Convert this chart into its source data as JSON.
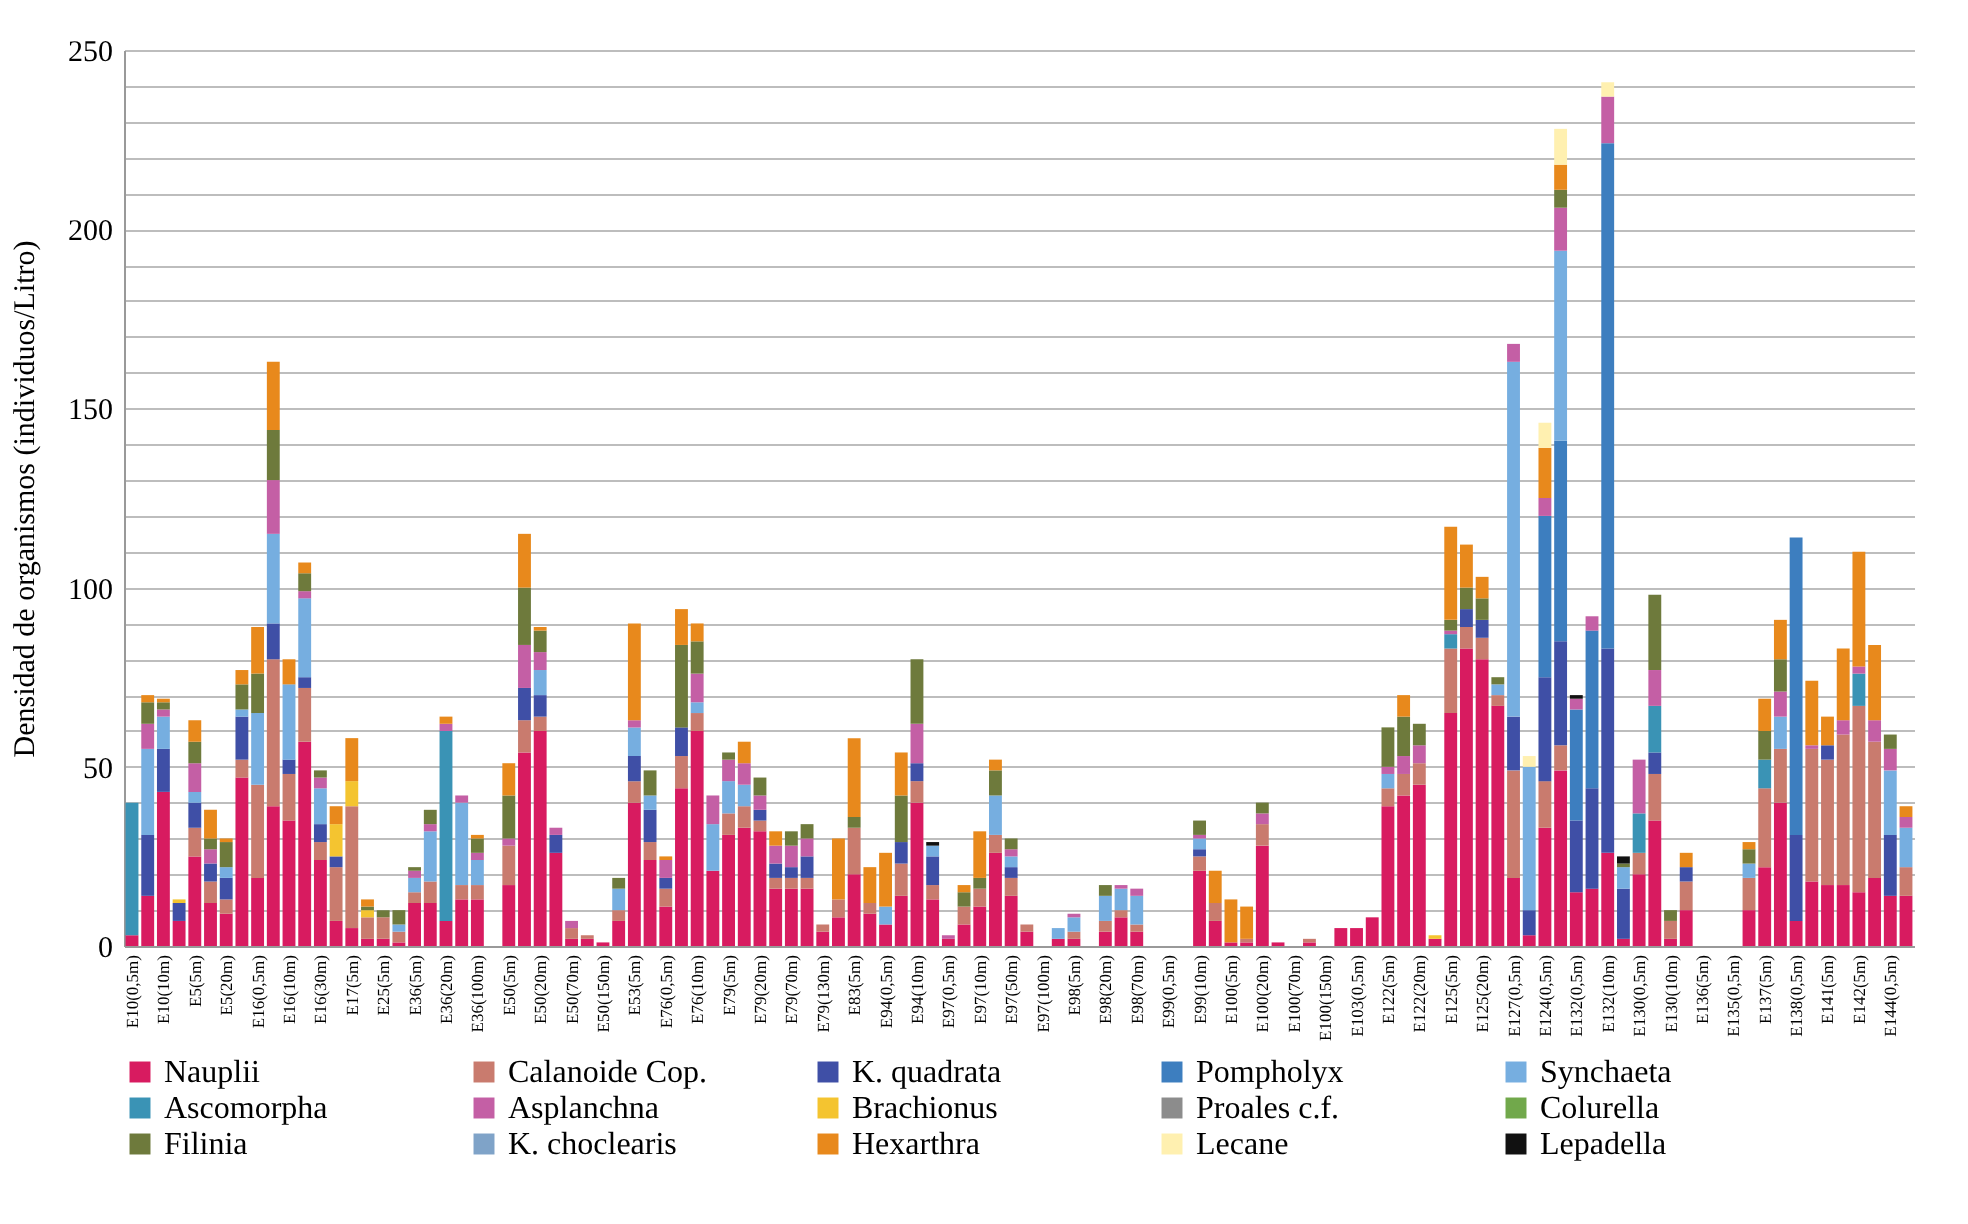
{
  "chart_data": {
    "type": "bar",
    "stacked": true,
    "ylabel": "Densidad de organismos (individuos/Litro)",
    "legend": "bottom",
    "grid": "y",
    "ylim": [
      0,
      250
    ],
    "yticks": [
      0,
      {
        "value": 10,
        "label": null
      },
      {
        "value": 20,
        "label": null
      },
      {
        "value": 30,
        "label": null
      },
      {
        "value": 40,
        "label": null
      },
      50,
      {
        "value": 60,
        "label": null
      },
      {
        "value": 70,
        "label": null
      },
      {
        "value": 80,
        "label": null
      },
      {
        "value": 90,
        "label": null
      },
      100,
      {
        "value": 110,
        "label": null
      },
      {
        "value": 120,
        "label": null
      },
      {
        "value": 130,
        "label": null
      },
      {
        "value": 140,
        "label": null
      },
      150,
      {
        "value": 160,
        "label": null
      },
      {
        "value": 170,
        "label": null
      },
      {
        "value": 180,
        "label": null
      },
      {
        "value": 190,
        "label": null
      },
      200,
      {
        "value": 210,
        "label": null
      },
      {
        "value": 220,
        "label": null
      },
      {
        "value": 230,
        "label": null
      },
      {
        "value": 240,
        "label": null
      },
      250
    ],
    "categories": [
      "E10(0,5m)",
      null,
      "E10(10m)",
      null,
      "E5(5m)",
      null,
      "E5(20m)",
      null,
      "E16(0,5m)",
      null,
      "E16(10m)",
      null,
      "E16(30m)",
      null,
      "E17(5m)",
      null,
      "E25(5m)",
      null,
      "E36(5m)",
      null,
      "E36(20m)",
      null,
      "E36(100m)",
      null,
      "E50(5m)",
      null,
      "E50(20m)",
      null,
      "E50(70m)",
      null,
      "E50(150m)",
      null,
      "E53(5m)",
      null,
      "E76(0,5m)",
      null,
      "E76(10m)",
      null,
      "E79(5m)",
      null,
      "E79(20m)",
      null,
      "E79(70m)",
      null,
      "E79(130m)",
      null,
      "E83(5m)",
      null,
      "E94(0,5m)",
      null,
      "E94(10m)",
      null,
      "E97(0,5m)",
      null,
      "E97(10m)",
      null,
      "E97(50m)",
      null,
      "E97(100m)",
      null,
      "E98(5m)",
      null,
      "E98(20m)",
      null,
      "E98(70m)",
      null,
      "E99(0,5m)",
      null,
      "E99(10m)",
      null,
      "E100(5m)",
      null,
      "E100(20m)",
      null,
      "E100(70m)",
      null,
      "E100(150m)",
      null,
      "E103(0,5m)",
      null,
      "E122(5m)",
      null,
      "E122(20m)",
      null,
      "E125(5m)",
      null,
      "E125(20m)",
      null,
      "E127(0,5m)",
      null,
      "E124(0,5m)",
      null,
      "E132(0,5m)",
      null,
      "E132(10m)",
      null,
      "E130(0,5m)",
      null,
      "E130(10m)",
      null,
      "E136(5m)",
      null,
      "E135(0,5m)",
      null,
      "E137(5m)",
      null,
      "E138(0,5m)",
      null,
      "E141(5m)",
      null,
      "E142(5m)",
      null,
      "E144(0,5m)",
      null
    ],
    "series": [
      {
        "name": "Nauplii",
        "color": "#d81b60",
        "values": [
          3,
          14,
          43,
          7,
          25,
          12,
          9,
          47,
          19,
          39,
          35,
          57,
          24,
          7,
          5,
          2,
          2,
          1,
          12,
          12,
          7,
          13,
          13,
          null,
          17,
          54,
          60,
          26,
          2,
          2,
          1,
          7,
          40,
          24,
          11,
          44,
          60,
          21,
          31,
          33,
          32,
          16,
          16,
          16,
          4,
          8,
          20,
          9,
          6,
          14,
          40,
          13,
          2,
          6,
          11,
          26,
          14,
          4,
          null,
          2,
          2,
          null,
          4,
          8,
          4,
          null,
          null,
          null,
          21,
          7,
          1,
          1,
          28,
          1,
          null,
          1,
          null,
          5,
          5,
          8,
          39,
          42,
          45,
          2,
          65,
          83,
          80,
          67,
          19,
          3,
          33,
          49,
          15,
          16,
          26,
          2,
          20,
          35,
          2,
          10,
          null,
          null,
          null,
          10,
          22,
          40,
          7,
          18,
          17,
          17,
          15,
          19,
          14,
          14
        ]
      },
      {
        "name": "Calanoide Cop.",
        "color": "#c97b6e",
        "values": [
          null,
          null,
          null,
          null,
          8,
          6,
          4,
          5,
          26,
          41,
          13,
          15,
          5,
          15,
          34,
          6,
          6,
          3,
          3,
          6,
          null,
          4,
          4,
          null,
          11,
          9,
          4,
          null,
          3,
          1,
          null,
          3,
          6,
          5,
          5,
          9,
          5,
          null,
          6,
          6,
          3,
          3,
          3,
          3,
          2,
          5,
          13,
          3,
          null,
          9,
          6,
          4,
          null,
          5,
          5,
          5,
          5,
          2,
          null,
          null,
          2,
          null,
          3,
          2,
          2,
          null,
          null,
          null,
          4,
          5,
          null,
          1,
          6,
          null,
          null,
          1,
          null,
          null,
          null,
          null,
          5,
          6,
          6,
          null,
          18,
          6,
          6,
          3,
          30,
          null,
          13,
          7,
          null,
          null,
          null,
          null,
          6,
          13,
          5,
          8,
          null,
          null,
          null,
          9,
          22,
          15,
          null,
          37,
          35,
          42,
          52,
          38,
          null,
          8
        ]
      },
      {
        "name": "K. quadrata",
        "color": "#3f4fa6",
        "values": [
          null,
          17,
          12,
          5,
          7,
          5,
          6,
          12,
          null,
          10,
          4,
          3,
          5,
          3,
          null,
          null,
          null,
          null,
          null,
          null,
          null,
          null,
          null,
          null,
          null,
          9,
          6,
          5,
          null,
          null,
          null,
          null,
          7,
          9,
          3,
          8,
          null,
          null,
          null,
          null,
          3,
          4,
          3,
          6,
          null,
          null,
          null,
          null,
          null,
          6,
          5,
          8,
          null,
          null,
          null,
          null,
          3,
          null,
          null,
          null,
          null,
          null,
          null,
          null,
          null,
          null,
          null,
          null,
          2,
          null,
          null,
          null,
          null,
          null,
          null,
          null,
          null,
          null,
          null,
          null,
          null,
          null,
          null,
          null,
          null,
          5,
          5,
          null,
          15,
          7,
          29,
          29,
          20,
          28,
          57,
          14,
          null,
          6,
          null,
          4,
          null,
          null,
          null,
          null,
          null,
          null,
          24,
          null,
          4,
          null,
          null,
          null,
          17,
          null
        ]
      },
      {
        "name": "Pompholyx",
        "color": "#3d7ebf",
        "values": [
          null,
          null,
          null,
          null,
          null,
          null,
          null,
          null,
          null,
          null,
          null,
          null,
          null,
          null,
          null,
          null,
          null,
          null,
          null,
          null,
          null,
          null,
          null,
          null,
          null,
          null,
          null,
          null,
          null,
          null,
          null,
          null,
          null,
          null,
          null,
          null,
          null,
          null,
          null,
          null,
          null,
          null,
          null,
          null,
          null,
          null,
          null,
          null,
          null,
          null,
          null,
          null,
          null,
          null,
          null,
          null,
          null,
          null,
          null,
          null,
          null,
          null,
          null,
          null,
          null,
          null,
          null,
          null,
          null,
          null,
          null,
          null,
          null,
          null,
          null,
          null,
          null,
          null,
          null,
          null,
          null,
          null,
          null,
          null,
          null,
          null,
          null,
          null,
          null,
          null,
          45,
          56,
          31,
          44,
          141,
          null,
          null,
          null,
          null,
          null,
          null,
          null,
          null,
          null,
          null,
          null,
          83,
          null,
          null,
          null,
          null,
          null,
          null,
          null
        ]
      },
      {
        "name": "Synchaeta",
        "color": "#76aee0",
        "values": [
          null,
          24,
          9,
          null,
          3,
          null,
          3,
          2,
          20,
          25,
          21,
          22,
          10,
          null,
          null,
          null,
          null,
          2,
          4,
          14,
          null,
          23,
          7,
          null,
          null,
          null,
          7,
          null,
          null,
          null,
          null,
          6,
          8,
          4,
          null,
          null,
          3,
          13,
          9,
          6,
          null,
          null,
          null,
          null,
          null,
          null,
          null,
          null,
          5,
          null,
          null,
          3,
          null,
          null,
          null,
          11,
          3,
          null,
          null,
          3,
          4,
          null,
          7,
          6,
          8,
          null,
          null,
          null,
          3,
          null,
          null,
          null,
          null,
          null,
          null,
          null,
          null,
          null,
          null,
          null,
          4,
          null,
          null,
          null,
          null,
          null,
          null,
          3,
          99,
          40,
          null,
          53,
          null,
          null,
          null,
          6,
          null,
          null,
          null,
          null,
          null,
          null,
          null,
          4,
          null,
          9,
          null,
          null,
          null,
          null,
          null,
          null,
          18,
          11
        ]
      },
      {
        "name": "Ascomorpha",
        "color": "#3a93b5",
        "values": [
          37,
          null,
          null,
          null,
          null,
          null,
          null,
          null,
          null,
          null,
          null,
          null,
          null,
          null,
          null,
          null,
          null,
          null,
          null,
          null,
          53,
          null,
          null,
          null,
          null,
          null,
          null,
          null,
          null,
          null,
          null,
          null,
          null,
          null,
          null,
          null,
          null,
          null,
          null,
          null,
          null,
          null,
          null,
          null,
          null,
          null,
          null,
          null,
          null,
          null,
          null,
          null,
          null,
          null,
          null,
          null,
          null,
          null,
          null,
          null,
          null,
          null,
          null,
          null,
          null,
          null,
          null,
          null,
          null,
          null,
          null,
          null,
          null,
          null,
          null,
          null,
          null,
          null,
          null,
          null,
          null,
          null,
          null,
          null,
          4,
          null,
          null,
          null,
          null,
          null,
          null,
          null,
          null,
          null,
          null,
          null,
          11,
          13,
          null,
          null,
          null,
          null,
          null,
          null,
          8,
          null,
          null,
          null,
          null,
          null,
          9,
          null,
          null,
          null
        ]
      },
      {
        "name": "Asplanchna",
        "color": "#c45fa5",
        "values": [
          null,
          7,
          2,
          null,
          8,
          4,
          null,
          null,
          null,
          15,
          null,
          2,
          3,
          null,
          null,
          null,
          null,
          null,
          2,
          2,
          2,
          2,
          2,
          null,
          2,
          12,
          5,
          2,
          2,
          null,
          null,
          null,
          2,
          null,
          5,
          null,
          8,
          8,
          6,
          6,
          4,
          5,
          6,
          5,
          null,
          null,
          null,
          null,
          null,
          null,
          11,
          null,
          1,
          null,
          null,
          null,
          2,
          null,
          null,
          null,
          1,
          null,
          null,
          1,
          2,
          null,
          null,
          null,
          1,
          null,
          null,
          null,
          3,
          null,
          null,
          null,
          null,
          null,
          null,
          null,
          2,
          5,
          5,
          null,
          1,
          null,
          null,
          null,
          5,
          null,
          5,
          12,
          3,
          4,
          13,
          null,
          15,
          10,
          null,
          null,
          null,
          null,
          null,
          null,
          null,
          7,
          null,
          1,
          null,
          4,
          2,
          6,
          6,
          3
        ]
      },
      {
        "name": "Brachionus",
        "color": "#f4c430",
        "values": [
          null,
          null,
          null,
          1,
          null,
          null,
          null,
          null,
          null,
          null,
          null,
          null,
          null,
          9,
          7,
          2,
          null,
          null,
          null,
          null,
          null,
          null,
          null,
          null,
          null,
          null,
          null,
          null,
          null,
          null,
          null,
          null,
          null,
          null,
          null,
          null,
          null,
          null,
          null,
          null,
          null,
          null,
          null,
          null,
          null,
          null,
          null,
          null,
          null,
          null,
          null,
          null,
          null,
          null,
          null,
          null,
          null,
          null,
          null,
          null,
          null,
          null,
          null,
          null,
          null,
          null,
          null,
          null,
          null,
          null,
          null,
          null,
          null,
          null,
          null,
          null,
          null,
          null,
          null,
          null,
          null,
          null,
          null,
          1,
          null,
          null,
          null,
          null,
          null,
          null,
          null,
          null,
          null,
          null,
          null,
          null,
          null,
          null,
          null,
          null,
          null,
          null,
          null,
          null,
          null,
          null,
          null,
          null,
          null,
          null,
          null,
          null,
          null,
          null
        ]
      },
      {
        "name": "Proales c.f.",
        "color": "#8c8c8c",
        "values": [
          null,
          null,
          null,
          null,
          null,
          null,
          null,
          null,
          null,
          null,
          null,
          null,
          null,
          null,
          null,
          null,
          null,
          null,
          null,
          null,
          null,
          null,
          null,
          null,
          null,
          null,
          null,
          null,
          null,
          null,
          null,
          null,
          null,
          null,
          null,
          null,
          null,
          null,
          null,
          null,
          null,
          null,
          null,
          null,
          null,
          null,
          null,
          null,
          null,
          null,
          null,
          null,
          null,
          null,
          null,
          null,
          null,
          null,
          null,
          null,
          null,
          null,
          null,
          null,
          null,
          null,
          null,
          null,
          null,
          null,
          null,
          null,
          null,
          null,
          null,
          null,
          null,
          null,
          null,
          null,
          null,
          null,
          null,
          null,
          null,
          null,
          null,
          null,
          null,
          null,
          null,
          null,
          null,
          null,
          null,
          null,
          null,
          null,
          null,
          null,
          null,
          null,
          null,
          null,
          null,
          null,
          null,
          null,
          null,
          null,
          null,
          null,
          null,
          null
        ]
      },
      {
        "name": "Colurella",
        "color": "#71a84b",
        "values": [
          null,
          null,
          null,
          null,
          null,
          null,
          null,
          null,
          null,
          null,
          null,
          null,
          null,
          null,
          null,
          null,
          null,
          null,
          null,
          null,
          null,
          null,
          null,
          null,
          null,
          null,
          null,
          null,
          null,
          null,
          null,
          null,
          null,
          null,
          null,
          null,
          null,
          null,
          null,
          null,
          null,
          null,
          null,
          null,
          null,
          null,
          null,
          null,
          null,
          null,
          null,
          null,
          null,
          null,
          null,
          null,
          null,
          null,
          null,
          null,
          null,
          null,
          null,
          null,
          null,
          null,
          null,
          null,
          null,
          null,
          null,
          null,
          null,
          null,
          null,
          null,
          null,
          null,
          null,
          null,
          null,
          null,
          null,
          null,
          null,
          null,
          null,
          null,
          null,
          null,
          null,
          null,
          null,
          null,
          null,
          null,
          null,
          null,
          null,
          null,
          null,
          null,
          null,
          null,
          null,
          null,
          null,
          null,
          null,
          null,
          null,
          null,
          null,
          null
        ]
      },
      {
        "name": "Filinia",
        "color": "#6e7a3c",
        "values": [
          null,
          6,
          2,
          null,
          6,
          3,
          7,
          7,
          11,
          14,
          null,
          5,
          2,
          null,
          null,
          1,
          2,
          4,
          1,
          4,
          null,
          null,
          4,
          null,
          12,
          16,
          6,
          null,
          null,
          null,
          null,
          3,
          null,
          7,
          null,
          23,
          9,
          null,
          2,
          null,
          5,
          null,
          4,
          4,
          null,
          null,
          3,
          null,
          null,
          13,
          18,
          null,
          null,
          4,
          3,
          7,
          3,
          null,
          null,
          null,
          null,
          null,
          3,
          null,
          null,
          null,
          null,
          null,
          4,
          null,
          null,
          null,
          3,
          null,
          null,
          null,
          null,
          null,
          null,
          null,
          11,
          11,
          6,
          null,
          3,
          6,
          6,
          2,
          null,
          null,
          null,
          5,
          null,
          null,
          null,
          1,
          null,
          21,
          3,
          null,
          null,
          null,
          null,
          4,
          8,
          9,
          null,
          null,
          null,
          null,
          null,
          null,
          4,
          null
        ]
      },
      {
        "name": "K. choclearis",
        "color": "#7fa3c8",
        "values": [
          null,
          null,
          null,
          null,
          null,
          null,
          null,
          null,
          null,
          null,
          null,
          null,
          null,
          null,
          null,
          null,
          null,
          null,
          null,
          null,
          null,
          null,
          null,
          null,
          null,
          null,
          null,
          null,
          null,
          null,
          null,
          null,
          null,
          null,
          null,
          null,
          null,
          null,
          null,
          null,
          null,
          null,
          null,
          null,
          null,
          null,
          null,
          null,
          null,
          null,
          null,
          null,
          null,
          null,
          null,
          null,
          null,
          null,
          null,
          null,
          null,
          null,
          null,
          null,
          null,
          null,
          null,
          null,
          null,
          null,
          null,
          null,
          null,
          null,
          null,
          null,
          null,
          null,
          null,
          null,
          null,
          null,
          null,
          null,
          null,
          null,
          null,
          null,
          null,
          null,
          null,
          null,
          null,
          null,
          null,
          null,
          null,
          null,
          null,
          null,
          null,
          null,
          null,
          null,
          null,
          null,
          null,
          null,
          null,
          null,
          null,
          null,
          null,
          null
        ]
      },
      {
        "name": "Hexarthra",
        "color": "#e8891c",
        "values": [
          null,
          2,
          1,
          null,
          6,
          8,
          1,
          4,
          13,
          19,
          7,
          3,
          null,
          5,
          12,
          2,
          null,
          null,
          null,
          null,
          2,
          null,
          1,
          null,
          9,
          15,
          1,
          null,
          null,
          null,
          null,
          null,
          27,
          null,
          1,
          10,
          5,
          null,
          null,
          6,
          null,
          4,
          null,
          null,
          null,
          17,
          22,
          10,
          15,
          12,
          null,
          null,
          null,
          2,
          13,
          3,
          null,
          null,
          null,
          null,
          null,
          null,
          null,
          null,
          null,
          null,
          null,
          null,
          null,
          9,
          12,
          9,
          null,
          null,
          null,
          null,
          null,
          null,
          null,
          null,
          null,
          6,
          null,
          null,
          26,
          12,
          6,
          null,
          null,
          null,
          14,
          7,
          null,
          null,
          null,
          null,
          null,
          null,
          null,
          4,
          null,
          null,
          null,
          2,
          9,
          11,
          null,
          18,
          8,
          20,
          32,
          21,
          null,
          3
        ]
      },
      {
        "name": "Lecane",
        "color": "#fff0b0",
        "values": [
          null,
          null,
          null,
          null,
          null,
          null,
          null,
          null,
          null,
          null,
          null,
          null,
          null,
          null,
          null,
          null,
          null,
          null,
          null,
          null,
          null,
          null,
          null,
          null,
          null,
          null,
          null,
          null,
          null,
          null,
          null,
          null,
          null,
          null,
          null,
          null,
          null,
          null,
          null,
          null,
          null,
          null,
          null,
          null,
          null,
          null,
          null,
          null,
          null,
          null,
          null,
          null,
          null,
          null,
          null,
          null,
          null,
          null,
          null,
          null,
          null,
          null,
          null,
          null,
          null,
          null,
          null,
          null,
          null,
          null,
          null,
          null,
          null,
          null,
          null,
          null,
          null,
          null,
          null,
          null,
          null,
          null,
          null,
          null,
          null,
          null,
          null,
          null,
          null,
          3,
          7,
          10,
          null,
          null,
          4,
          null,
          null,
          null,
          null,
          null,
          null,
          null,
          null,
          null,
          null,
          null,
          null,
          null,
          null,
          null,
          null,
          null,
          null,
          null
        ]
      },
      {
        "name": "Lepadella",
        "color": "#111111",
        "values": [
          null,
          null,
          null,
          null,
          null,
          null,
          null,
          null,
          null,
          null,
          null,
          null,
          null,
          null,
          null,
          null,
          null,
          null,
          null,
          null,
          null,
          null,
          null,
          null,
          null,
          null,
          null,
          null,
          null,
          null,
          null,
          null,
          null,
          null,
          null,
          null,
          null,
          null,
          null,
          null,
          null,
          null,
          null,
          null,
          null,
          null,
          null,
          null,
          null,
          null,
          null,
          1,
          null,
          null,
          null,
          null,
          null,
          null,
          null,
          null,
          null,
          null,
          null,
          null,
          null,
          null,
          null,
          null,
          null,
          null,
          null,
          null,
          null,
          null,
          null,
          null,
          null,
          null,
          null,
          null,
          null,
          null,
          null,
          null,
          null,
          null,
          null,
          null,
          null,
          null,
          null,
          null,
          1,
          null,
          null,
          2,
          null,
          null,
          null,
          null,
          null,
          null,
          null,
          null,
          null,
          null,
          null,
          null,
          null,
          null,
          null,
          null,
          null,
          null
        ]
      }
    ]
  }
}
